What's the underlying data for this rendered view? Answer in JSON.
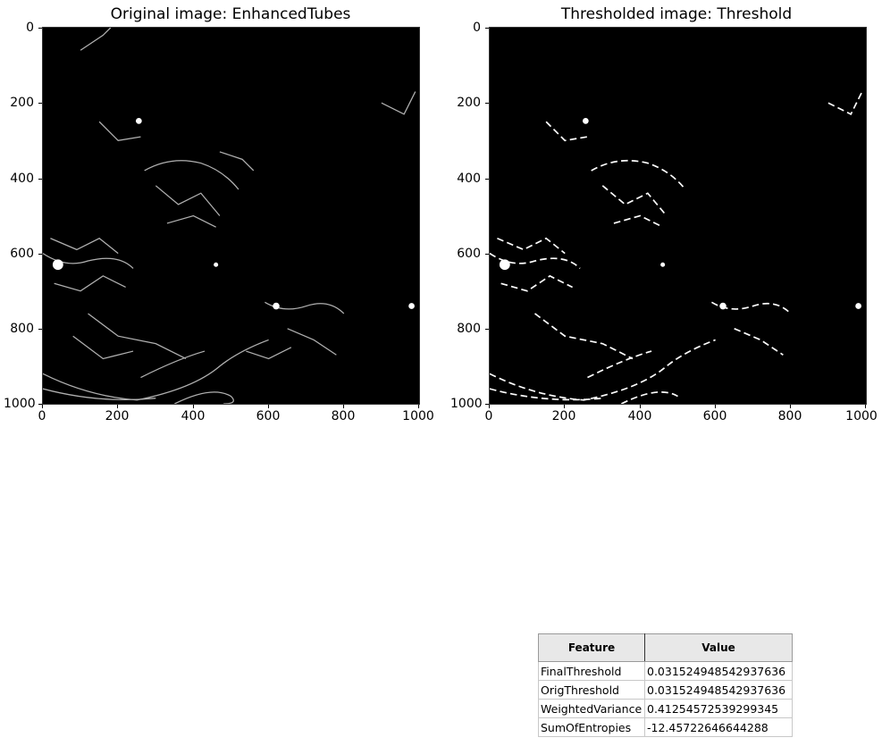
{
  "panels": [
    {
      "title": "Original image: EnhancedTubes"
    },
    {
      "title": "Thresholded image: Threshold"
    }
  ],
  "axes": {
    "y_ticks": [
      "0",
      "200",
      "400",
      "600",
      "800",
      "1000"
    ],
    "x_ticks": [
      "0",
      "200",
      "400",
      "600",
      "800",
      "1000"
    ]
  },
  "table": {
    "headers": [
      "Feature",
      "Value"
    ],
    "rows": [
      [
        "FinalThreshold",
        "0.031524948542937636"
      ],
      [
        "OrigThreshold",
        "0.031524948542937636"
      ],
      [
        "WeightedVariance",
        "0.41254572539299345"
      ],
      [
        "SumOfEntropies",
        "-12.45722646644288"
      ]
    ]
  }
}
